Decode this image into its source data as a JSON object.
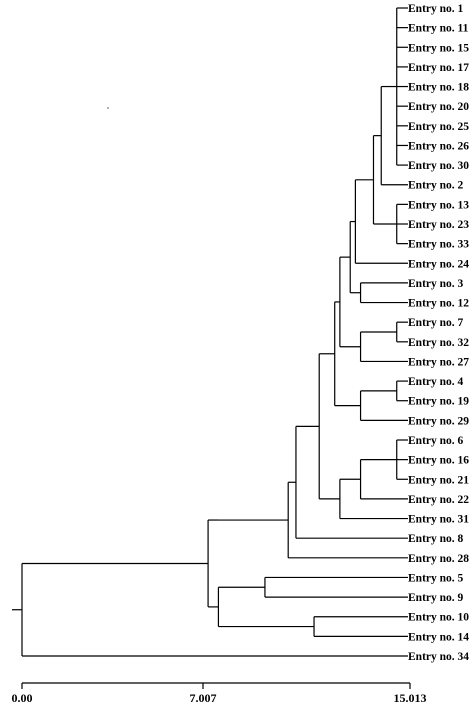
{
  "leaves": [
    "Entry no. 1",
    "Entry no. 11",
    "Entry no. 15",
    "Entry no. 17",
    "Entry no. 18",
    "Entry no. 20",
    "Entry no. 25",
    "Entry no. 26",
    "Entry no. 30",
    "Entry no. 2",
    "Entry no. 13",
    "Entry no. 23",
    "Entry no. 33",
    "Entry no. 24",
    "Entry no. 3",
    "Entry no. 12",
    "Entry no. 7",
    "Entry no. 32",
    "Entry no. 27",
    "Entry no. 4",
    "Entry no. 19",
    "Entry no. 29",
    "Entry no. 6",
    "Entry no. 16",
    "Entry no. 21",
    "Entry no. 22",
    "Entry no. 31",
    "Entry no. 8",
    "Entry no. 28",
    "Entry no. 5",
    "Entry no. 9",
    "Entry no. 10",
    "Entry no. 14",
    "Entry no. 34"
  ],
  "axis": {
    "min": 0,
    "max": 15.013,
    "ticks": [
      "0.00",
      "7.007",
      "15.013"
    ]
  },
  "tree": {
    "height": 0,
    "children": [
      {
        "height": 7.2,
        "children": [
          {
            "height": 7.6,
            "children": [
              {
                "height": 10.3,
                "children": [
                  {
                    "height": 10.6,
                    "children": [
                      {
                        "height": 11.5,
                        "children": [
                          {
                            "height": 12.1,
                            "children": [
                              {
                                "height": 12.3,
                                "children": [
                                  {
                                    "height": 12.7,
                                    "children": [
                                      {
                                        "height": 12.9,
                                        "children": [
                                          {
                                            "height": 13.6,
                                            "children": [
                                              {
                                                "height": 13.9,
                                                "children": [
                                                  {
                                                    "height": 14.5,
                                                    "children": [
                                                      {
                                                        "leaf": 0
                                                      },
                                                      {
                                                        "leaf": 1
                                                      },
                                                      {
                                                        "leaf": 2
                                                      },
                                                      {
                                                        "leaf": 3
                                                      },
                                                      {
                                                        "leaf": 4
                                                      },
                                                      {
                                                        "leaf": 5
                                                      },
                                                      {
                                                        "leaf": 6
                                                      },
                                                      {
                                                        "leaf": 7
                                                      },
                                                      {
                                                        "leaf": 8
                                                      }
                                                    ]
                                                  },
                                                  {
                                                    "leaf": 9
                                                  }
                                                ]
                                              },
                                              {
                                                "height": 14.5,
                                                "children": [
                                                  {
                                                    "leaf": 10
                                                  },
                                                  {
                                                    "leaf": 11
                                                  },
                                                  {
                                                    "leaf": 12
                                                  }
                                                ]
                                              }
                                            ]
                                          },
                                          {
                                            "leaf": 13
                                          }
                                        ]
                                      },
                                      {
                                        "height": 13.1,
                                        "children": [
                                          {
                                            "leaf": 14
                                          },
                                          {
                                            "leaf": 15
                                          }
                                        ]
                                      }
                                    ]
                                  },
                                  {
                                    "height": 13.1,
                                    "children": [
                                      {
                                        "height": 14.5,
                                        "children": [
                                          {
                                            "leaf": 16
                                          },
                                          {
                                            "leaf": 17
                                          }
                                        ]
                                      },
                                      {
                                        "leaf": 18
                                      }
                                    ]
                                  }
                                ]
                              },
                              {
                                "height": 13.1,
                                "children": [
                                  {
                                    "height": 14.5,
                                    "children": [
                                      {
                                        "leaf": 19
                                      },
                                      {
                                        "leaf": 20
                                      }
                                    ]
                                  },
                                  {
                                    "leaf": 21
                                  }
                                ]
                              }
                            ]
                          },
                          {
                            "height": 12.3,
                            "children": [
                              {
                                "height": 13.1,
                                "children": [
                                  {
                                    "height": 14.5,
                                    "children": [
                                      {
                                        "leaf": 22
                                      },
                                      {
                                        "leaf": 23
                                      },
                                      {
                                        "leaf": 24
                                      }
                                    ]
                                  },
                                  {
                                    "leaf": 25
                                  }
                                ]
                              },
                              {
                                "leaf": 26
                              }
                            ]
                          }
                        ]
                      },
                      {
                        "leaf": 27
                      }
                    ]
                  },
                  {
                    "leaf": 28
                  }
                ]
              }
            ]
          },
          {
            "height": 7.6,
            "children": [
              {
                "height": 9.4,
                "children": [
                  {
                    "leaf": 29
                  },
                  {
                    "leaf": 30
                  }
                ]
              },
              {
                "height": 11.3,
                "children": [
                  {
                    "leaf": 31
                  },
                  {
                    "leaf": 32
                  }
                ]
              }
            ]
          }
        ]
      },
      {
        "leaf": 33
      }
    ]
  }
}
